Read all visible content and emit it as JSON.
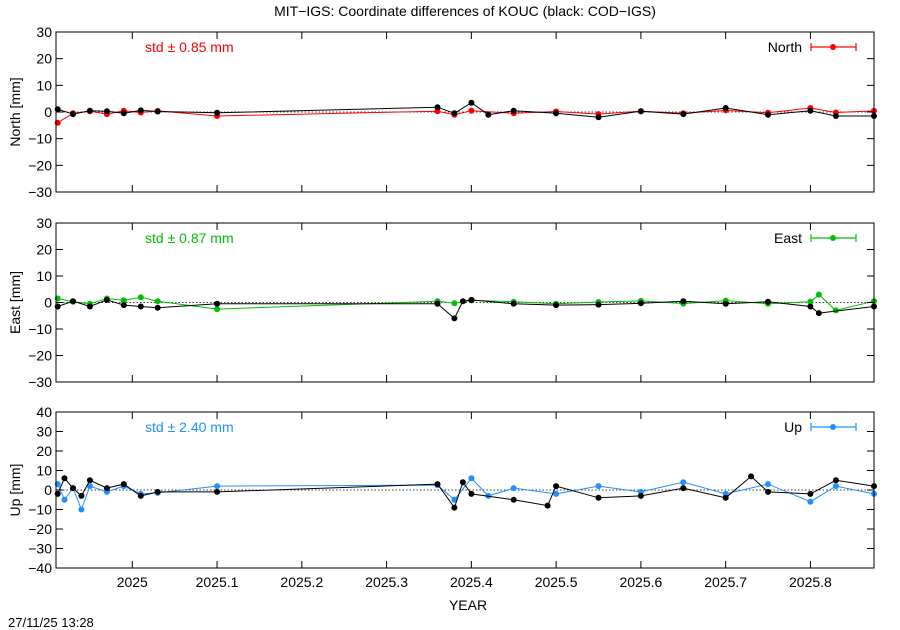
{
  "title": "MIT−IGS: Coordinate differences of KOUC (black: COD−IGS)",
  "xlabel": "YEAR",
  "timestamp": "27/11/25 13:28",
  "x_ticks": [
    2025,
    2025.1,
    2025.2,
    2025.3,
    2025.4,
    2025.5,
    2025.6,
    2025.7,
    2025.8
  ],
  "x_tick_labels": [
    "2025",
    "2025.1",
    "2025.2",
    "2025.3",
    "2025.4",
    "2025.5",
    "2025.6",
    "2025.7",
    "2025.8"
  ],
  "colors": {
    "north": "#ff0000",
    "east": "#00c000",
    "up": "#1e90ff",
    "reference": "#000000"
  },
  "chart_data": [
    {
      "type": "line",
      "panel": "north",
      "ylabel": "North [mm]",
      "legend": "North",
      "std_label": "std ± 0.85 mm",
      "xlim": [
        2024.91,
        2025.875
      ],
      "ylim": [
        -30,
        30
      ],
      "yticks": [
        30,
        20,
        10,
        0,
        -10,
        -20,
        -30
      ],
      "ytick_labels": [
        "30",
        "20",
        "10",
        "0",
        "−10",
        "−20",
        "−30"
      ],
      "series": [
        {
          "name": "MIT−IGS",
          "color": "#ff0000",
          "x": [
            2024.912,
            2024.93,
            2024.95,
            2024.97,
            2024.99,
            2025.01,
            2025.03,
            2025.1,
            2025.36,
            2025.38,
            2025.4,
            2025.45,
            2025.5,
            2025.55,
            2025.6,
            2025.65,
            2025.7,
            2025.75,
            2025.8,
            2025.83,
            2025.875
          ],
          "y": [
            -4,
            -0.5,
            0.3,
            -0.8,
            0.5,
            -0.2,
            0.4,
            -1.5,
            0.3,
            -1,
            0.5,
            -0.5,
            0.2,
            -0.8,
            0.3,
            -0.5,
            0.6,
            -0.3,
            1.5,
            -0.2,
            0.4
          ]
        },
        {
          "name": "COD−IGS",
          "color": "#000000",
          "x": [
            2024.912,
            2024.93,
            2024.95,
            2024.97,
            2024.99,
            2025.01,
            2025.03,
            2025.1,
            2025.36,
            2025.38,
            2025.4,
            2025.42,
            2025.45,
            2025.5,
            2025.55,
            2025.6,
            2025.65,
            2025.7,
            2025.75,
            2025.8,
            2025.83,
            2025.875
          ],
          "y": [
            1,
            -0.8,
            0.5,
            0.3,
            -0.5,
            0.6,
            0.2,
            -0.3,
            1.8,
            -0.5,
            3.5,
            -1,
            0.5,
            -0.5,
            -2,
            0.3,
            -0.8,
            1.5,
            -1,
            0.5,
            -1.5,
            -1.5
          ]
        }
      ]
    },
    {
      "type": "line",
      "panel": "east",
      "ylabel": "East [mm]",
      "legend": "East",
      "std_label": "std ± 0.87 mm",
      "xlim": [
        2024.91,
        2025.875
      ],
      "ylim": [
        -30,
        30
      ],
      "yticks": [
        30,
        20,
        10,
        0,
        -10,
        -20,
        -30
      ],
      "ytick_labels": [
        "30",
        "20",
        "10",
        "0",
        "−10",
        "−20",
        "−30"
      ],
      "series": [
        {
          "name": "MIT−IGS",
          "color": "#00c000",
          "x": [
            2024.912,
            2024.93,
            2024.95,
            2024.97,
            2024.99,
            2025.01,
            2025.03,
            2025.1,
            2025.36,
            2025.38,
            2025.4,
            2025.45,
            2025.5,
            2025.55,
            2025.6,
            2025.65,
            2025.7,
            2025.75,
            2025.8,
            2025.81,
            2025.83,
            2025.875
          ],
          "y": [
            1.5,
            0.3,
            -0.5,
            1.5,
            0.8,
            2,
            0.5,
            -2.5,
            0.5,
            -0.3,
            0.8,
            0.3,
            -0.5,
            0.2,
            0.6,
            -0.4,
            0.7,
            -0.5,
            0.3,
            3,
            -3,
            0.5
          ]
        },
        {
          "name": "COD−IGS",
          "color": "#000000",
          "x": [
            2024.912,
            2024.93,
            2024.95,
            2024.97,
            2024.99,
            2025.01,
            2025.03,
            2025.1,
            2025.36,
            2025.38,
            2025.39,
            2025.4,
            2025.45,
            2025.5,
            2025.55,
            2025.6,
            2025.65,
            2025.7,
            2025.75,
            2025.8,
            2025.81,
            2025.875
          ],
          "y": [
            -1.5,
            0.5,
            -1.5,
            1,
            -1,
            -1.5,
            -2,
            -0.5,
            -0.5,
            -6,
            0.5,
            1,
            -0.5,
            -1,
            -0.8,
            -0.3,
            0.5,
            -0.5,
            0.3,
            -1.5,
            -4,
            -1.5
          ]
        }
      ]
    },
    {
      "type": "line",
      "panel": "up",
      "ylabel": "Up [mm]",
      "legend": "Up",
      "std_label": "std ± 2.40 mm",
      "xlim": [
        2024.91,
        2025.875
      ],
      "ylim": [
        -40,
        40
      ],
      "yticks": [
        40,
        30,
        20,
        10,
        0,
        -10,
        -20,
        -30,
        -40
      ],
      "ytick_labels": [
        "40",
        "30",
        "20",
        "10",
        "0",
        "−10",
        "−20",
        "−30",
        "−40"
      ],
      "series": [
        {
          "name": "MIT−IGS",
          "color": "#1e90ff",
          "x": [
            2024.912,
            2024.92,
            2024.93,
            2024.94,
            2024.95,
            2024.97,
            2024.99,
            2025.01,
            2025.03,
            2025.1,
            2025.36,
            2025.38,
            2025.4,
            2025.42,
            2025.45,
            2025.5,
            2025.55,
            2025.6,
            2025.65,
            2025.7,
            2025.75,
            2025.8,
            2025.83,
            2025.875
          ],
          "y": [
            3,
            -5,
            1,
            -10,
            2,
            -1,
            2,
            -2,
            -1.5,
            2,
            2.5,
            -5,
            6,
            -3,
            1,
            -2,
            2,
            -1,
            4,
            -2,
            3,
            -6,
            2,
            -2
          ]
        },
        {
          "name": "COD−IGS",
          "color": "#000000",
          "x": [
            2024.912,
            2024.92,
            2024.93,
            2024.94,
            2024.95,
            2024.97,
            2024.99,
            2025.01,
            2025.03,
            2025.1,
            2025.36,
            2025.38,
            2025.39,
            2025.4,
            2025.45,
            2025.49,
            2025.5,
            2025.55,
            2025.6,
            2025.65,
            2025.7,
            2025.73,
            2025.75,
            2025.8,
            2025.83,
            2025.875
          ],
          "y": [
            -2,
            6,
            1,
            -3,
            5,
            1,
            3,
            -3,
            -1,
            -1,
            3,
            -9,
            4,
            -2,
            -5,
            -8,
            2,
            -4,
            -3,
            1,
            -4,
            7,
            -1,
            -2,
            5,
            2
          ]
        }
      ]
    }
  ]
}
